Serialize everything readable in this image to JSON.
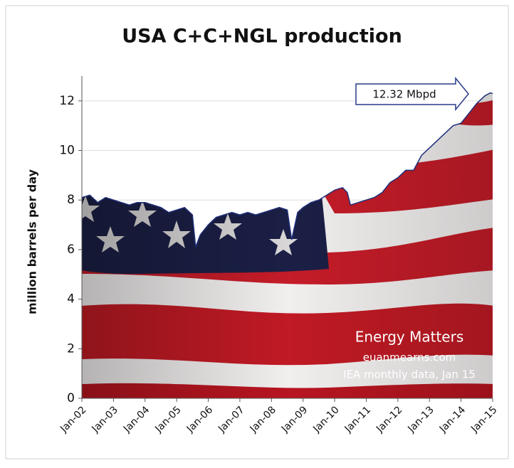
{
  "chart_data": {
    "type": "area",
    "title": "USA C+C+NGL production",
    "y_label": "million barrels per day",
    "x": [
      2002.0,
      2002.25,
      2002.5,
      2002.75,
      2003.0,
      2003.25,
      2003.5,
      2003.75,
      2004.0,
      2004.25,
      2004.5,
      2004.75,
      2005.0,
      2005.25,
      2005.5,
      2005.6,
      2005.75,
      2006.0,
      2006.25,
      2006.5,
      2006.75,
      2007.0,
      2007.25,
      2007.5,
      2007.75,
      2008.0,
      2008.25,
      2008.5,
      2008.64,
      2008.83,
      2009.0,
      2009.25,
      2009.5,
      2009.75,
      2010.0,
      2010.25,
      2010.4,
      2010.5,
      2010.75,
      2011.0,
      2011.25,
      2011.5,
      2011.75,
      2012.0,
      2012.25,
      2012.5,
      2012.75,
      2013.0,
      2013.25,
      2013.5,
      2013.75,
      2014.0,
      2014.25,
      2014.5,
      2014.75,
      2014.92,
      2015.0
    ],
    "values": [
      8.1,
      8.2,
      7.9,
      8.1,
      8.0,
      7.9,
      7.8,
      7.9,
      7.9,
      7.8,
      7.7,
      7.5,
      7.6,
      7.7,
      7.4,
      6.1,
      6.6,
      7.0,
      7.3,
      7.4,
      7.5,
      7.4,
      7.5,
      7.4,
      7.5,
      7.6,
      7.7,
      7.6,
      6.4,
      7.5,
      7.7,
      7.9,
      8.0,
      8.2,
      8.4,
      8.5,
      8.3,
      7.8,
      7.9,
      8.0,
      8.1,
      8.3,
      8.7,
      8.9,
      9.2,
      9.2,
      9.8,
      10.1,
      10.4,
      10.7,
      11.0,
      11.1,
      11.5,
      11.9,
      12.2,
      12.32,
      12.3
    ],
    "color": "#1f2f7a",
    "xlim": [
      2002,
      2015
    ],
    "xticks": [
      {
        "value": 2002,
        "label": "Jan-02"
      },
      {
        "value": 2003,
        "label": "Jan-03"
      },
      {
        "value": 2004,
        "label": "Jan-04"
      },
      {
        "value": 2005,
        "label": "Jan-05"
      },
      {
        "value": 2006,
        "label": "Jan-06"
      },
      {
        "value": 2007,
        "label": "Jan-07"
      },
      {
        "value": 2008,
        "label": "Jan-08"
      },
      {
        "value": 2009,
        "label": "Jan-09"
      },
      {
        "value": 2010,
        "label": "Jan-10"
      },
      {
        "value": 2011,
        "label": "Jan-11"
      },
      {
        "value": 2012,
        "label": "Jan-12"
      },
      {
        "value": 2013,
        "label": "Jan-13"
      },
      {
        "value": 2014,
        "label": "Jan-14"
      },
      {
        "value": 2015,
        "label": "Jan-15"
      }
    ],
    "ylim": [
      0,
      13
    ],
    "yticks": [
      0,
      2,
      4,
      6,
      8,
      10,
      12
    ],
    "grid": true,
    "annotations": [
      "12.32 Mbpd",
      "Energy Matters",
      "euanmearns.com",
      "IEA monthly data, Jan 15"
    ]
  }
}
